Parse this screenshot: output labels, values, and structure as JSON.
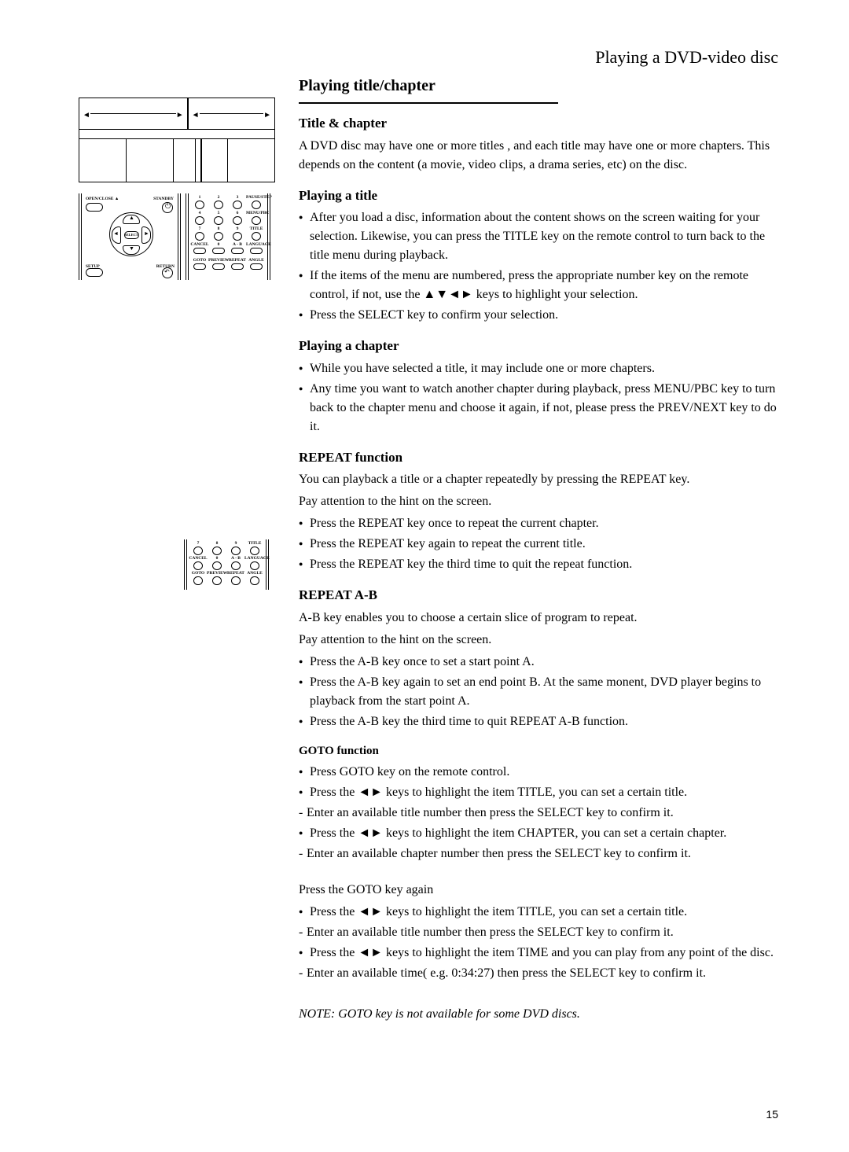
{
  "header": {
    "title": "Playing a DVD-video disc"
  },
  "main": {
    "heading": "Playing title/chapter",
    "title_chapter": {
      "heading": "Title & chapter",
      "text": "A DVD disc may have one or more titles , and each title may have one or more chapters. This depends on the content (a movie, video clips, a drama series, etc) on the disc."
    },
    "playing_title": {
      "heading": "Playing a title",
      "items": [
        "After you load a disc, information about the content shows on the screen waiting for your selection. Likewise, you can press the TITLE key on the remote control to turn back to the title menu during playback.",
        "If the items of the menu are numbered, press the appropriate number key on the remote control, if not, use the ▲▼◄► keys to highlight your selection.",
        "Press the SELECT key to confirm your selection."
      ]
    },
    "playing_chapter": {
      "heading": "Playing a chapter",
      "items": [
        "While you have selected a title, it may include one or more chapters.",
        "Any time you want to watch another chapter during playback, press MENU/PBC key to turn back to the chapter menu and choose it again, if not, please press the PREV/NEXT key to do it."
      ]
    },
    "repeat": {
      "heading": "REPEAT function",
      "intro1": "You can playback a title or a chapter repeatedly by pressing the REPEAT key.",
      "intro2": "Pay attention to the hint on the screen.",
      "items": [
        "Press the REPEAT key once to repeat the current chapter.",
        "Press the REPEAT key again to repeat the current title.",
        "Press the REPEAT key the third time to quit the repeat function."
      ]
    },
    "repeat_ab": {
      "heading": "REPEAT A-B",
      "intro1": "A-B key enables you to choose a certain slice of program to repeat.",
      "intro2": "Pay attention to the hint on the screen.",
      "items": [
        "Press the A-B key once to set a start point A.",
        "Press the A-B key again to set an end point B. At the same monent, DVD player begins to playback from the start point A.",
        "Press the A-B key the third time to quit REPEAT A-B function."
      ]
    },
    "goto": {
      "heading": "GOTO function",
      "items1": [
        "Press GOTO key on the remote control.",
        "Press the ◄► keys to highlight the item TITLE, you can set a certain title."
      ],
      "dash1": [
        "Enter an available title number then press the SELECT key to confirm it."
      ],
      "items2": [
        "Press the ◄► keys to highlight the item CHAPTER, you can set a certain chapter."
      ],
      "dash2": [
        "Enter an available chapter number then press the SELECT key to confirm it."
      ],
      "para_again": "Press the GOTO key again",
      "items3": [
        "Press the ◄► keys to highlight the item TITLE, you can set a certain title."
      ],
      "dash3": [
        "Enter an available title number then press the SELECT key to confirm it."
      ],
      "items4": [
        "Press the ◄► keys to highlight the item TIME and you can play from any point of the disc."
      ],
      "dash4": [
        "Enter an available time( e.g. 0:34:27) then press the SELECT key to confirm it."
      ]
    },
    "note": "NOTE: GOTO key is not available for some DVD discs."
  },
  "page_number": "15",
  "remote": {
    "dpad": {
      "open_close": "OPEN/CLOSE ▲",
      "standby": "STANDBY",
      "setup": "SETUP",
      "return": "RETURN",
      "select": "SELECT"
    },
    "keypad_labels": [
      "1",
      "2",
      "3",
      "PAUSE/STEP",
      "4",
      "5",
      "6",
      "MENU/PBC",
      "7",
      "8",
      "9",
      "TITLE",
      "CANCEL",
      "0",
      "A - B",
      "LANGUAGE",
      "GOTO",
      "PREVIEW",
      "REPEAT",
      "ANGLE"
    ],
    "repeat_labels": [
      "7",
      "8",
      "9",
      "TITLE",
      "CANCEL",
      "0",
      "A - B",
      "LANGUAGE",
      "GOTO",
      "PREVIEW",
      "REPEAT",
      "ANGLE"
    ]
  }
}
